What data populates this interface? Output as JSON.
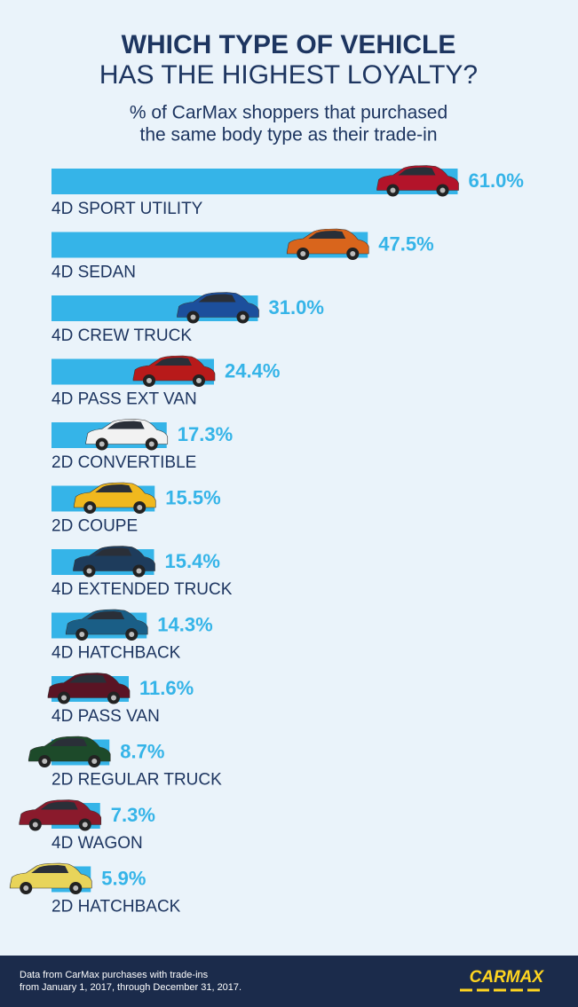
{
  "chart_data": {
    "type": "bar",
    "title": [
      "WHICH TYPE OF VEHICLE",
      "HAS THE HIGHEST LOYALTY?"
    ],
    "subtitle": [
      "% of CarMax shoppers that purchased",
      "the same body type as their trade-in"
    ],
    "categories": [
      "4D SPORT UTILITY",
      "4D SEDAN",
      "4D CREW TRUCK",
      "4D PASS EXT VAN",
      "2D CONVERTIBLE",
      "2D COUPE",
      "4D EXTENDED TRUCK",
      "4D HATCHBACK",
      "4D PASS VAN",
      "2D REGULAR TRUCK",
      "4D WAGON",
      "2D HATCHBACK"
    ],
    "values": [
      61.0,
      47.5,
      31.0,
      24.4,
      17.3,
      15.5,
      15.4,
      14.3,
      11.6,
      8.7,
      7.3,
      5.9
    ],
    "value_labels": [
      "61.0%",
      "47.5%",
      "31.0%",
      "24.4%",
      "17.3%",
      "15.5%",
      "15.4%",
      "14.3%",
      "11.6%",
      "8.7%",
      "7.3%",
      "5.9%"
    ],
    "color": "#35b4e8",
    "car_colors": [
      "#b3142a",
      "#d9651c",
      "#1c4f9c",
      "#b81a1a",
      "#f2f2f2",
      "#f0b81e",
      "#1e3c5c",
      "#1a5e86",
      "#5a1424",
      "#1d4a2a",
      "#8a1a2c",
      "#e8d45a"
    ],
    "footer": [
      "Data from CarMax purchases with trade-ins",
      "from January 1, 2017, through December 31, 2017."
    ],
    "brand": "CARMAX"
  }
}
